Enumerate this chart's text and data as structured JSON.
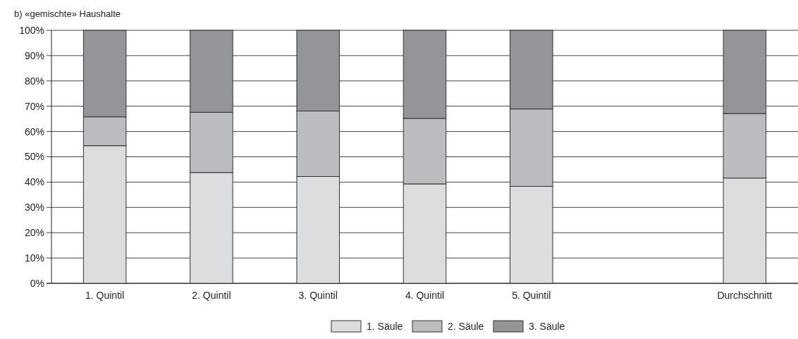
{
  "chart_data": {
    "type": "bar",
    "title": "b) «gemischte» Haushalte",
    "stacked": true,
    "categories": [
      "1. Quintil",
      "2. Quintil",
      "3. Quintil",
      "4. Quintil",
      "5. Quintil",
      null,
      "Durchschnitt"
    ],
    "series": [
      {
        "name": "1. Säule",
        "color": "#dcdddf",
        "values": [
          54.4,
          43.8,
          42.2,
          39.3,
          38.3,
          null,
          41.6
        ]
      },
      {
        "name": "2. Säule",
        "color": "#bbbcc0",
        "values": [
          11.4,
          23.8,
          25.9,
          25.9,
          30.6,
          null,
          25.5
        ]
      },
      {
        "name": "3. Säule",
        "color": "#949599",
        "values": [
          34.2,
          32.4,
          31.9,
          34.8,
          31.1,
          null,
          32.9
        ]
      }
    ],
    "ylim": [
      0,
      100
    ],
    "yticks": [
      {
        "value": 0,
        "label": "0%"
      },
      {
        "value": 10,
        "label": "10%"
      },
      {
        "value": 20,
        "label": "20%"
      },
      {
        "value": 30,
        "label": "30%"
      },
      {
        "value": 40,
        "label": "40%"
      },
      {
        "value": 50,
        "label": "50%"
      },
      {
        "value": 60,
        "label": "60%"
      },
      {
        "value": 70,
        "label": "70%"
      },
      {
        "value": 80,
        "label": "80%"
      },
      {
        "value": 90,
        "label": "90%"
      },
      {
        "value": 100,
        "label": "100%"
      }
    ],
    "grid": "y",
    "legend": "bottom"
  }
}
